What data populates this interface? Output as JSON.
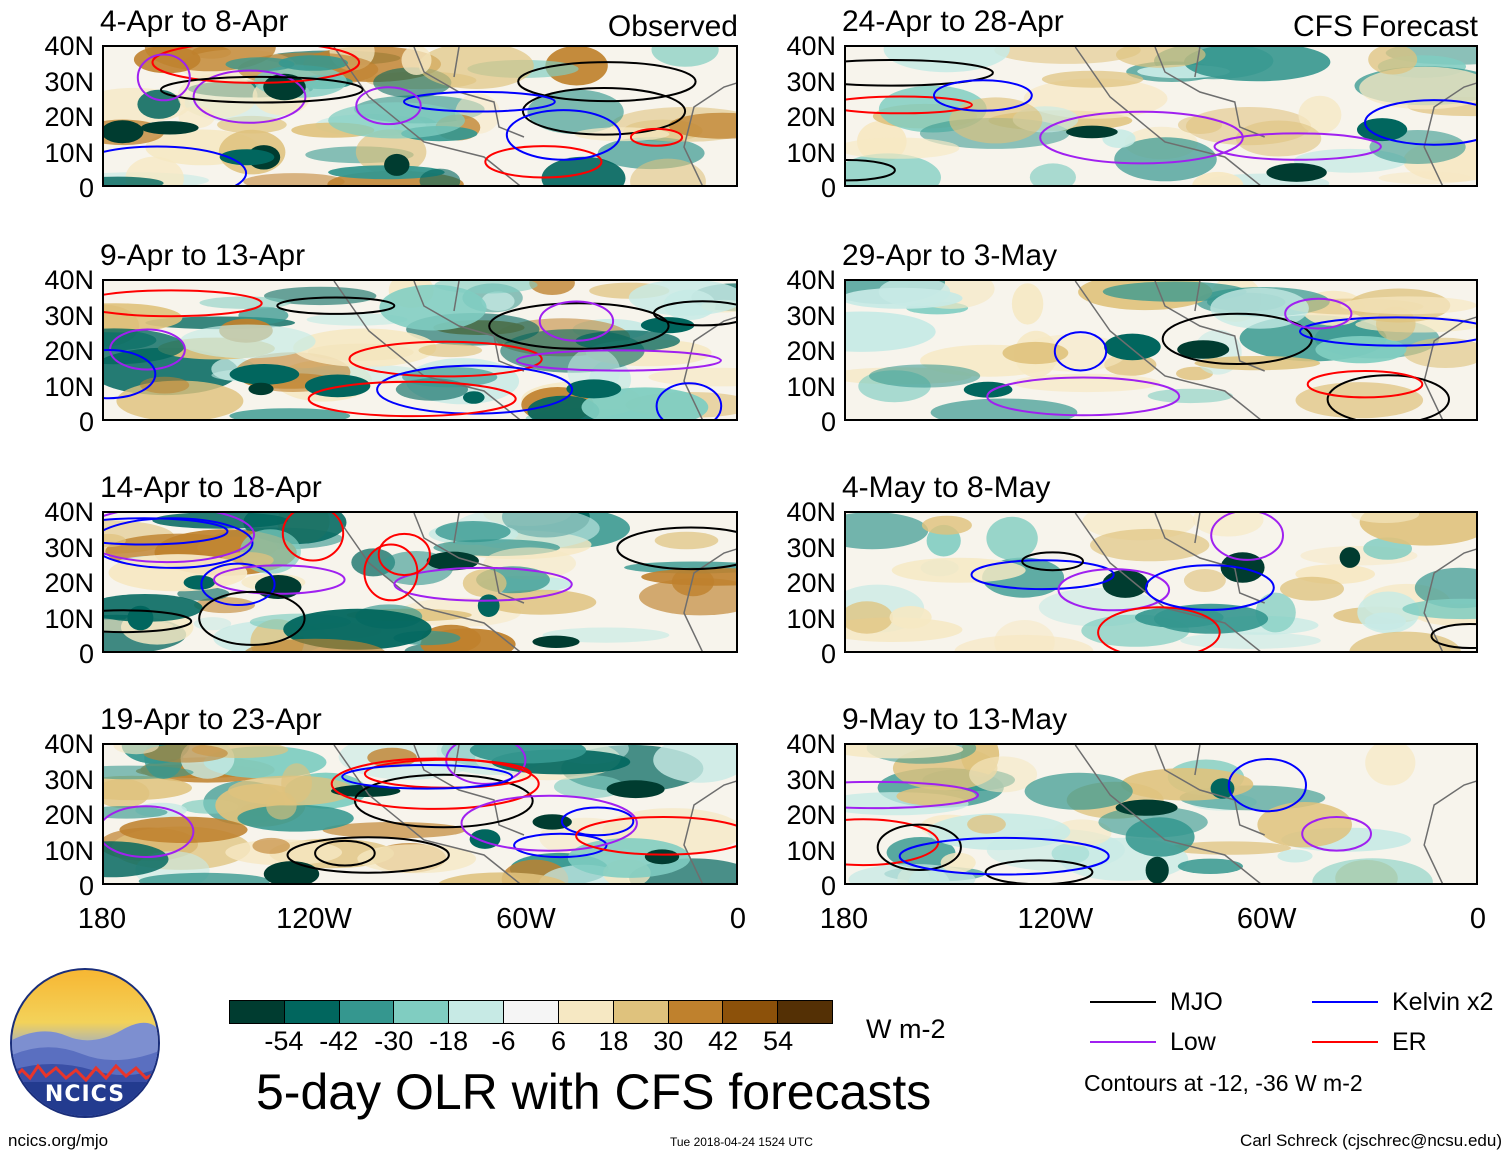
{
  "chart_data": {
    "type": "heatmap",
    "title": "5-day OLR with CFS forecasts",
    "colorbar": {
      "units": "W m-2",
      "tick_labels": [
        "-54",
        "-42",
        "-30",
        "-18",
        "-6",
        "6",
        "18",
        "30",
        "42",
        "54"
      ],
      "colors": [
        "#003c30",
        "#01665e",
        "#35978f",
        "#80cdc1",
        "#c7eae5",
        "#f5f5f5",
        "#f6e8c3",
        "#dfc27d",
        "#bf812d",
        "#8c510a",
        "#543005"
      ]
    },
    "y_ticks": [
      "40N",
      "30N",
      "20N",
      "10N",
      "0"
    ],
    "x_ticks": [
      "180",
      "120W",
      "60W",
      "0"
    ],
    "lat_range": [
      0,
      40
    ],
    "lon_range": [
      -180,
      0
    ],
    "columns": [
      {
        "label": "Observed",
        "panels": [
          "4-Apr to 8-Apr",
          "9-Apr to 13-Apr",
          "14-Apr to 18-Apr",
          "19-Apr to 23-Apr"
        ]
      },
      {
        "label": "CFS Forecast",
        "panels": [
          "24-Apr to 28-Apr",
          "29-Apr to 3-May",
          "4-May to 8-May",
          "9-May to 13-May"
        ]
      }
    ],
    "legend": {
      "items": [
        {
          "label": "MJO",
          "color": "#000000"
        },
        {
          "label": "Kelvin x2",
          "color": "#0000ff"
        },
        {
          "label": "Low",
          "color": "#a020f0"
        },
        {
          "label": "ER",
          "color": "#ff0000"
        }
      ],
      "contour_note": "Contours at -12, -36 W m-2"
    }
  },
  "footer": {
    "left": "ncics.org/mjo",
    "timestamp": "Tue 2018-04-24 1524 UTC",
    "right": "Carl Schreck (cjschrec@ncsu.edu)"
  },
  "logo": {
    "text": "NCICS"
  }
}
